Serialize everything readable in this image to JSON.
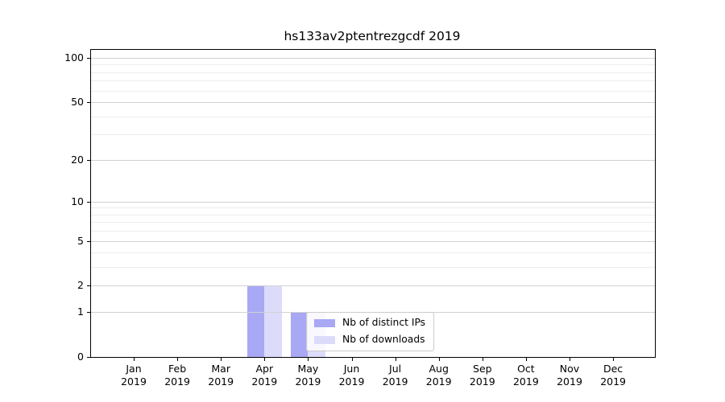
{
  "title": "hs133av2ptentrezgcdf 2019",
  "chart_data": {
    "type": "bar",
    "title": "hs133av2ptentrezgcdf 2019",
    "categories": [
      "Jan",
      "Feb",
      "Mar",
      "Apr",
      "May",
      "Jun",
      "Jul",
      "Aug",
      "Sep",
      "Oct",
      "Nov",
      "Dec"
    ],
    "x_year": "2019",
    "series": [
      {
        "name": "Nb of distinct IPs",
        "color": "#a8a8f4",
        "values": [
          0,
          0,
          0,
          2,
          1,
          0,
          0,
          0,
          0,
          0,
          0,
          0
        ]
      },
      {
        "name": "Nb of downloads",
        "color": "#dcdcfa",
        "values": [
          0,
          0,
          0,
          2,
          1,
          0,
          0,
          0,
          0,
          0,
          0,
          0
        ]
      }
    ],
    "y_scale": "log1p",
    "y_ticks_labeled": [
      100,
      50,
      20,
      10,
      5,
      2,
      1,
      0
    ],
    "y_minor_gridlines": [
      3,
      4,
      6,
      7,
      8,
      9,
      30,
      40,
      60,
      70,
      80,
      90
    ],
    "ylim": [
      0,
      113
    ],
    "grid": "horizontal",
    "legend_position": "lower-center",
    "colors": {
      "labeled_grid": "#d2d2d2",
      "minor_grid": "#ededed",
      "spine": "#000000",
      "legend_border": "#cccccc",
      "text": "#000000",
      "background": "#ffffff"
    }
  }
}
